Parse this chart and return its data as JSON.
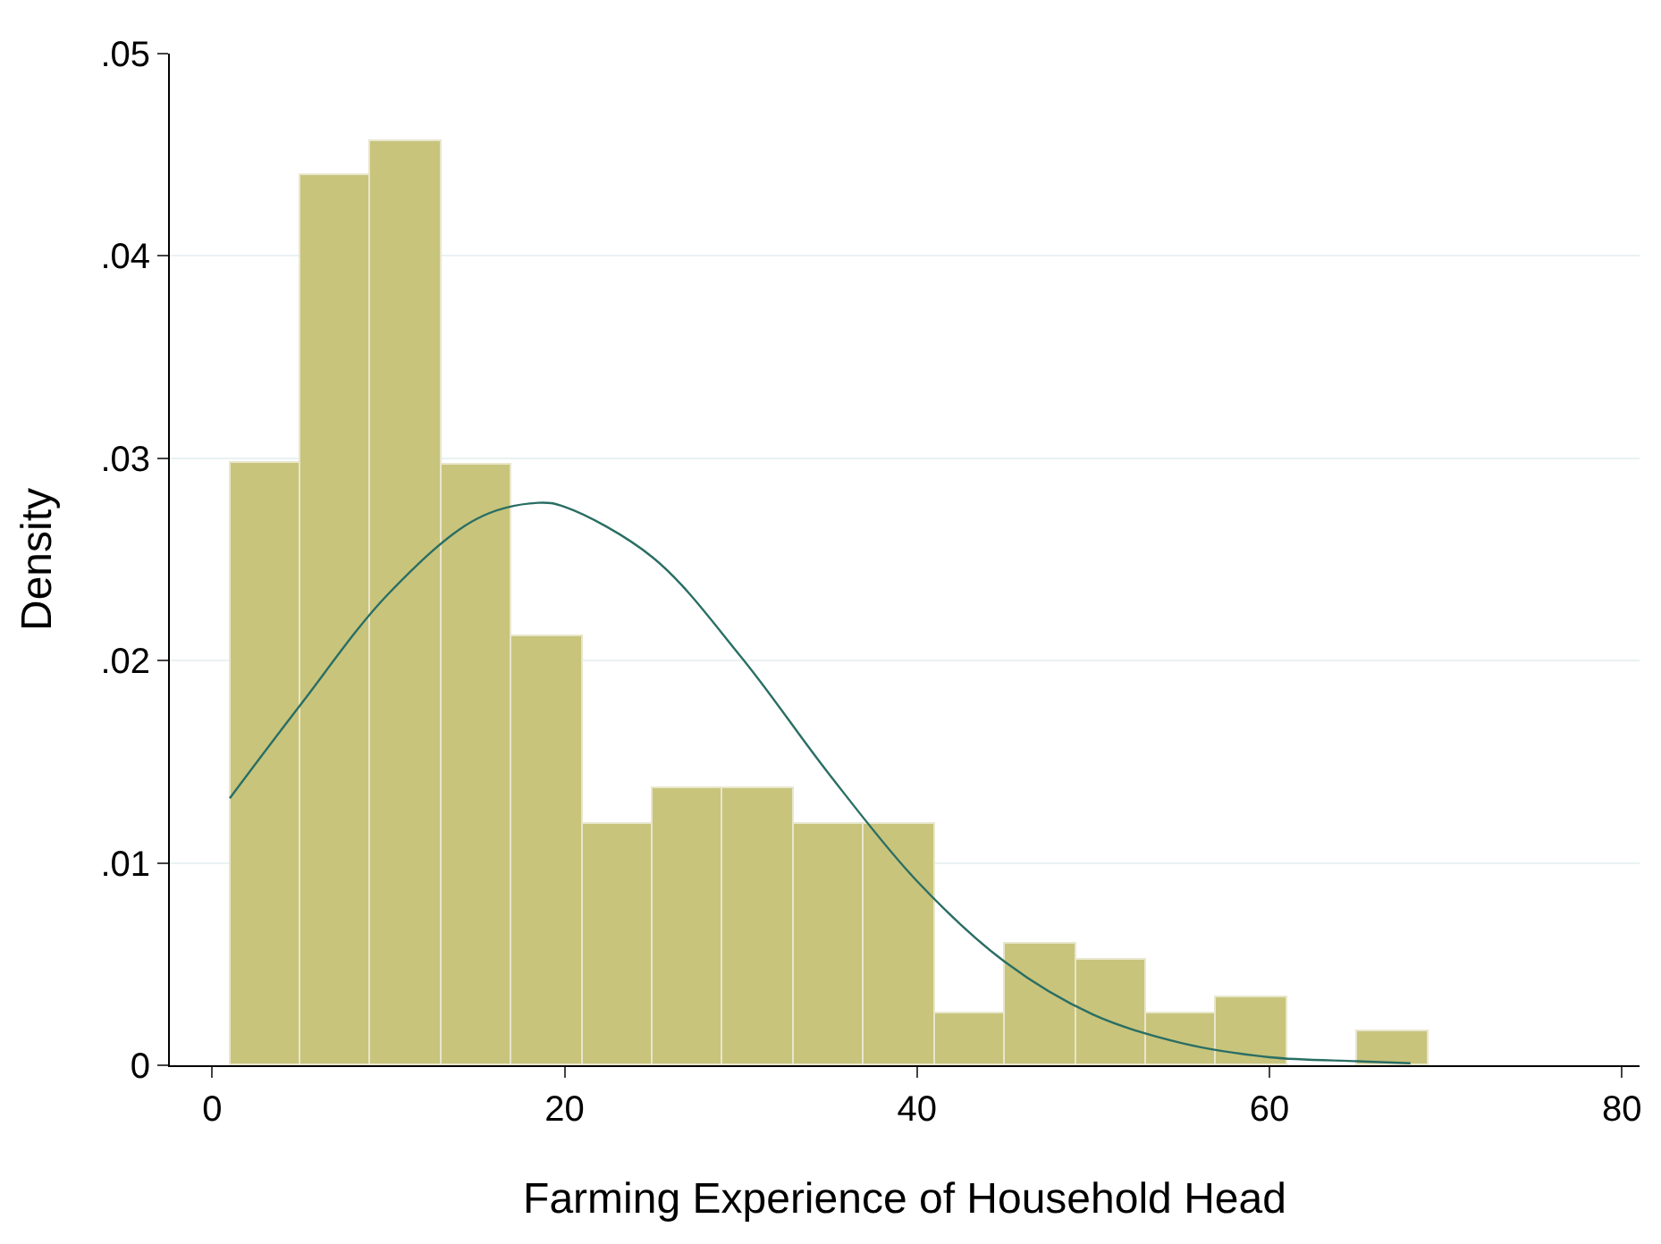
{
  "chart_data": {
    "type": "histogram",
    "xlabel": "Farming Experience of Household Head",
    "ylabel": "Density",
    "bins": [
      1,
      5,
      9,
      13,
      17,
      21,
      25,
      29,
      33,
      37,
      41,
      45,
      49,
      53,
      57,
      61,
      65,
      69
    ],
    "values": [
      0.0298,
      0.044,
      0.0457,
      0.0297,
      0.0212,
      0.0119,
      0.0137,
      0.0137,
      0.0119,
      0.0119,
      0.0026,
      0.006,
      0.0052,
      0.0026,
      0.0034,
      0,
      0.0017
    ],
    "color": "#c8c47c",
    "series": [
      {
        "type": "line",
        "color": "#2a6e64",
        "x": [
          1,
          5,
          10,
          15,
          18.5,
          20,
          25,
          30,
          35,
          40,
          45,
          50,
          55,
          60,
          65,
          68
        ],
        "values": [
          0.0132,
          0.0178,
          0.0233,
          0.027,
          0.0278,
          0.0276,
          0.0251,
          0.0202,
          0.0144,
          0.0091,
          0.0051,
          0.0025,
          0.0011,
          0.0004,
          0.0002,
          0.0001
        ]
      }
    ],
    "xlim": [
      -2.4,
      81
    ],
    "xticks": [
      0,
      20,
      40,
      60,
      80
    ],
    "ylim": [
      0,
      0.05
    ],
    "yticks": [
      0,
      {
        "value": 0.01,
        "label": ".01"
      },
      {
        "value": 0.02,
        "label": ".02"
      },
      {
        "value": 0.03,
        "label": ".03"
      },
      {
        "value": 0.04,
        "label": ".04"
      },
      {
        "value": 0.05,
        "label": ".05"
      }
    ],
    "grid": "y"
  }
}
